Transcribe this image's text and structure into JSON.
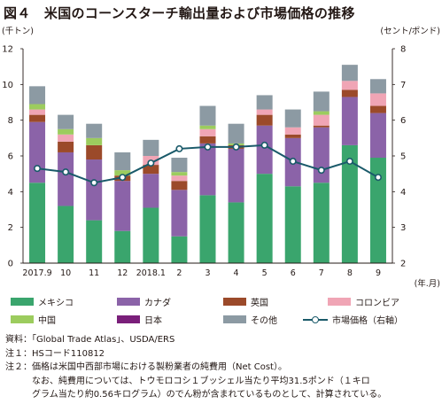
{
  "title": "図４　米国のコーンスターチ輸出量および市場価格の推移",
  "chart_data": {
    "type": "bar",
    "stacked": true,
    "categories": [
      "2017.9",
      "10",
      "11",
      "12",
      "2018.1",
      "2",
      "3",
      "4",
      "5",
      "6",
      "7",
      "8",
      "9"
    ],
    "x_unit": "(年.月)",
    "left_axis": {
      "unit_label": "(千トン)",
      "min": 0,
      "max": 12,
      "ticks": [
        0,
        2,
        4,
        6,
        8,
        10,
        12
      ]
    },
    "right_axis": {
      "unit_label": "(セント/ポンド)",
      "min": 2,
      "max": 8,
      "ticks": [
        2,
        3,
        4,
        5,
        6,
        7,
        8
      ]
    },
    "series": [
      {
        "name": "メキシコ",
        "color": "#3aa56d",
        "values": [
          4.5,
          3.2,
          2.4,
          1.8,
          3.1,
          1.5,
          3.8,
          3.4,
          5.0,
          4.3,
          4.5,
          6.6,
          5.9
        ]
      },
      {
        "name": "カナダ",
        "color": "#8b63a8",
        "values": [
          3.4,
          3.0,
          3.4,
          2.8,
          1.9,
          2.6,
          2.9,
          3.0,
          2.7,
          2.7,
          3.1,
          2.7,
          2.5
        ]
      },
      {
        "name": "英国",
        "color": "#9b4a2a",
        "values": [
          0.4,
          0.6,
          0.8,
          0.3,
          0.5,
          0.5,
          0.4,
          0.2,
          0.6,
          0.2,
          0.1,
          0.4,
          0.4
        ]
      },
      {
        "name": "コロンビア",
        "color": "#f0a5b5",
        "values": [
          0.3,
          0.4,
          0.0,
          0.0,
          0.5,
          0.3,
          0.4,
          0.0,
          0.3,
          0.4,
          0.6,
          0.5,
          0.7
        ]
      },
      {
        "name": "中国",
        "color": "#9ccc5e",
        "values": [
          0.3,
          0.3,
          0.4,
          0.3,
          0.0,
          0.2,
          0.2,
          0.1,
          0.0,
          0.0,
          0.2,
          0.0,
          0.0
        ]
      },
      {
        "name": "日本",
        "color": "#7a1f7a",
        "values": [
          0.0,
          0.0,
          0.0,
          0.0,
          0.0,
          0.0,
          0.0,
          0.0,
          0.0,
          0.0,
          0.0,
          0.0,
          0.0
        ]
      },
      {
        "name": "その他",
        "color": "#8c9aa3",
        "values": [
          1.0,
          0.8,
          0.8,
          1.0,
          0.9,
          0.8,
          1.1,
          1.1,
          0.8,
          1.0,
          1.1,
          0.9,
          0.8
        ]
      }
    ],
    "line_series": {
      "name": "市場価格（右軸）",
      "color": "#1a5a6a",
      "axis": "right",
      "values": [
        4.65,
        4.55,
        4.25,
        4.4,
        4.8,
        5.2,
        5.25,
        5.25,
        5.3,
        4.85,
        4.6,
        4.85,
        4.4
      ]
    },
    "legend_placement": "bottom",
    "grid": false
  },
  "legend_items": [
    "メキシコ",
    "カナダ",
    "英国",
    "コロンビア",
    "中国",
    "日本",
    "その他",
    "市場価格（右軸）"
  ],
  "notes": [
    "資料：「Global Trade Atlas」、USDA/ERS",
    "注１：HSコード110812",
    "注２：価格は米国中西部市場における製粉業者の純費用（Net Cost）。",
    "　　　なお、純費用については、トウモロコシ１ブッシェル当たり平均31.5ポンド（１キロ",
    "　　　グラム当たり約0.56キログラム）のでん粉が含まれているものとして、計算されている。"
  ]
}
